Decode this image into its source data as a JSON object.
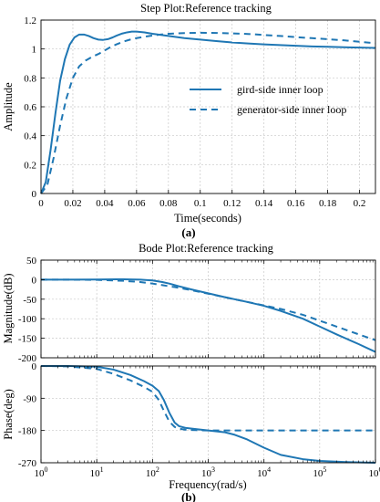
{
  "chart_data": [
    {
      "panel_label": "(a)",
      "type": "line",
      "title": "Step Plot:Reference tracking",
      "xlabel": "Time(seconds)",
      "ylabel": "Amplitude",
      "xlim": [
        0,
        0.21
      ],
      "ylim": [
        0,
        1.2
      ],
      "xticks": [
        0,
        0.02,
        0.04,
        0.06,
        0.08,
        0.1,
        0.12,
        0.14,
        0.16,
        0.18,
        0.2
      ],
      "yticks": [
        0,
        0.2,
        0.4,
        0.6,
        0.8,
        1,
        1.2
      ],
      "grid": true,
      "legend_position": "right",
      "series": [
        {
          "name": "gird-side inner  loop",
          "style": "solid",
          "x": [
            0,
            0.003,
            0.006,
            0.009,
            0.012,
            0.015,
            0.018,
            0.021,
            0.024,
            0.027,
            0.03,
            0.033,
            0.036,
            0.039,
            0.042,
            0.045,
            0.048,
            0.051,
            0.054,
            0.057,
            0.06,
            0.065,
            0.07,
            0.08,
            0.09,
            0.1,
            0.11,
            0.12,
            0.13,
            0.14,
            0.15,
            0.16,
            0.17,
            0.18,
            0.19,
            0.2,
            0.21
          ],
          "y": [
            0,
            0.08,
            0.3,
            0.55,
            0.78,
            0.93,
            1.03,
            1.08,
            1.1,
            1.1,
            1.09,
            1.075,
            1.065,
            1.063,
            1.068,
            1.08,
            1.095,
            1.107,
            1.115,
            1.12,
            1.12,
            1.115,
            1.105,
            1.09,
            1.075,
            1.065,
            1.055,
            1.045,
            1.038,
            1.032,
            1.027,
            1.022,
            1.018,
            1.015,
            1.012,
            1.01,
            1.007
          ]
        },
        {
          "name": "generator-side inner  loop",
          "style": "dashed",
          "x": [
            0,
            0.004,
            0.008,
            0.012,
            0.016,
            0.02,
            0.024,
            0.028,
            0.032,
            0.036,
            0.04,
            0.044,
            0.048,
            0.052,
            0.056,
            0.06,
            0.065,
            0.07,
            0.075,
            0.08,
            0.09,
            0.1,
            0.11,
            0.12,
            0.13,
            0.14,
            0.15,
            0.16,
            0.17,
            0.18,
            0.19,
            0.2,
            0.21
          ],
          "y": [
            0,
            0.06,
            0.25,
            0.47,
            0.66,
            0.8,
            0.88,
            0.92,
            0.945,
            0.965,
            0.99,
            1.015,
            1.035,
            1.052,
            1.065,
            1.075,
            1.085,
            1.093,
            1.1,
            1.105,
            1.11,
            1.112,
            1.111,
            1.108,
            1.104,
            1.097,
            1.09,
            1.082,
            1.075,
            1.068,
            1.06,
            1.05,
            1.04
          ]
        }
      ]
    },
    {
      "panel_label": "(b)",
      "type": "line",
      "title": "Bode Plot:Reference tracking",
      "xlabel": "Frequency(rad/s)",
      "xscale": "log",
      "xlim": [
        1,
        1000000
      ],
      "xticks": [
        "10^0",
        "10^1",
        "10^2",
        "10^3",
        "10^4",
        "10^5",
        "10^6"
      ],
      "grid": true,
      "subplots": [
        {
          "name": "magnitude",
          "ylabel": "Magnitude(dB)",
          "ylim": [
            -200,
            50
          ],
          "yticks": [
            50,
            0,
            -50,
            -100,
            -150,
            -200
          ],
          "series": [
            {
              "style": "solid",
              "x": [
                1,
                3,
                10,
                30,
                60,
                100,
                150,
                200,
                250,
                300,
                500,
                1000,
                2000,
                5000,
                10000,
                20000,
                50000,
                100000,
                200000,
                500000,
                1000000
              ],
              "y": [
                0,
                0,
                0.5,
                1,
                0,
                -2,
                -6,
                -10,
                -14,
                -17,
                -25,
                -35,
                -45,
                -57,
                -67,
                -80,
                -100,
                -120,
                -140,
                -165,
                -185
              ]
            },
            {
              "style": "dashed",
              "x": [
                1,
                3,
                10,
                30,
                60,
                100,
                150,
                200,
                250,
                300,
                500,
                1000,
                2000,
                5000,
                10000,
                20000,
                50000,
                100000,
                200000,
                500000,
                1000000
              ],
              "y": [
                0,
                0,
                -0.5,
                -3,
                -6,
                -10,
                -14,
                -17,
                -19,
                -21,
                -27,
                -36,
                -45,
                -57,
                -66,
                -75,
                -90,
                -105,
                -120,
                -140,
                -155
              ]
            }
          ]
        },
        {
          "name": "phase",
          "ylabel": "Phase(deg)",
          "ylim": [
            -270,
            0
          ],
          "yticks": [
            0,
            -90,
            -180,
            -270
          ],
          "series": [
            {
              "style": "solid",
              "x": [
                1,
                3,
                10,
                20,
                40,
                70,
                100,
                130,
                160,
                200,
                250,
                300,
                400,
                600,
                1000,
                2000,
                3000,
                5000,
                10000,
                20000,
                50000,
                100000,
                300000,
                1000000
              ],
              "y": [
                0,
                0,
                -2,
                -10,
                -25,
                -42,
                -55,
                -70,
                -95,
                -130,
                -158,
                -168,
                -173,
                -176,
                -180,
                -185,
                -192,
                -205,
                -228,
                -248,
                -260,
                -265,
                -268,
                -270
              ]
            },
            {
              "style": "dashed",
              "x": [
                1,
                3,
                10,
                20,
                40,
                70,
                100,
                130,
                160,
                200,
                250,
                300,
                400,
                600,
                1000,
                2000,
                5000,
                10000,
                100000,
                1000000
              ],
              "y": [
                0,
                -1,
                -8,
                -22,
                -40,
                -58,
                -72,
                -95,
                -125,
                -155,
                -170,
                -175,
                -178,
                -179,
                -180,
                -180,
                -180,
                -180,
                -180,
                -180
              ]
            }
          ]
        }
      ]
    }
  ]
}
